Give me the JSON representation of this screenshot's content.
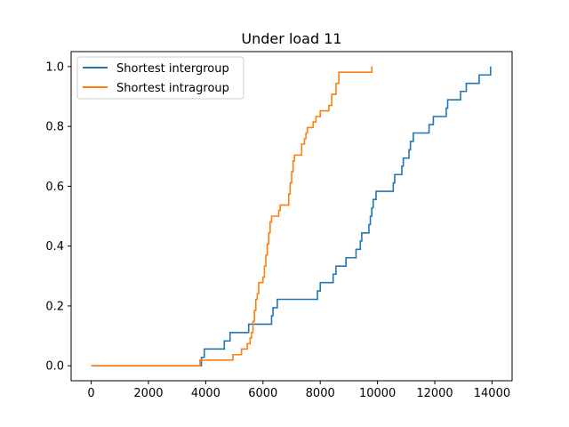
{
  "chart_data": {
    "type": "line",
    "step": true,
    "title": "Under load 11",
    "xlabel": "",
    "ylabel": "",
    "xlim": [
      -700,
      14700
    ],
    "ylim": [
      -0.05,
      1.05
    ],
    "xticks": [
      0,
      2000,
      4000,
      6000,
      8000,
      10000,
      12000,
      14000
    ],
    "xtick_labels": [
      "0",
      "2000",
      "4000",
      "6000",
      "8000",
      "10000",
      "12000",
      "14000"
    ],
    "yticks": [
      0.0,
      0.2,
      0.4,
      0.6,
      0.8,
      1.0
    ],
    "ytick_labels": [
      "0.0",
      "0.2",
      "0.4",
      "0.6",
      "0.8",
      "1.0"
    ],
    "grid": false,
    "legend_position": "upper-left",
    "series": [
      {
        "name": "Shortest intergroup",
        "color": "#1f77b4",
        "points": [
          [
            0,
            0.0
          ],
          [
            3850,
            0.0
          ],
          [
            3850,
            0.028
          ],
          [
            3950,
            0.028
          ],
          [
            3950,
            0.056
          ],
          [
            4650,
            0.056
          ],
          [
            4650,
            0.083
          ],
          [
            4850,
            0.083
          ],
          [
            4850,
            0.111
          ],
          [
            5500,
            0.111
          ],
          [
            5500,
            0.139
          ],
          [
            6300,
            0.139
          ],
          [
            6300,
            0.167
          ],
          [
            6350,
            0.167
          ],
          [
            6350,
            0.194
          ],
          [
            6500,
            0.194
          ],
          [
            6500,
            0.222
          ],
          [
            7900,
            0.222
          ],
          [
            7900,
            0.25
          ],
          [
            8000,
            0.25
          ],
          [
            8000,
            0.278
          ],
          [
            8450,
            0.278
          ],
          [
            8450,
            0.306
          ],
          [
            8550,
            0.306
          ],
          [
            8550,
            0.333
          ],
          [
            8900,
            0.333
          ],
          [
            8900,
            0.361
          ],
          [
            9250,
            0.361
          ],
          [
            9250,
            0.389
          ],
          [
            9400,
            0.389
          ],
          [
            9400,
            0.417
          ],
          [
            9450,
            0.417
          ],
          [
            9450,
            0.444
          ],
          [
            9700,
            0.444
          ],
          [
            9700,
            0.472
          ],
          [
            9750,
            0.472
          ],
          [
            9750,
            0.5
          ],
          [
            9800,
            0.5
          ],
          [
            9800,
            0.528
          ],
          [
            9850,
            0.528
          ],
          [
            9850,
            0.556
          ],
          [
            9950,
            0.556
          ],
          [
            9950,
            0.583
          ],
          [
            10550,
            0.583
          ],
          [
            10550,
            0.611
          ],
          [
            10600,
            0.611
          ],
          [
            10600,
            0.639
          ],
          [
            10850,
            0.639
          ],
          [
            10850,
            0.667
          ],
          [
            10900,
            0.667
          ],
          [
            10900,
            0.694
          ],
          [
            11100,
            0.694
          ],
          [
            11100,
            0.722
          ],
          [
            11150,
            0.722
          ],
          [
            11150,
            0.75
          ],
          [
            11250,
            0.75
          ],
          [
            11250,
            0.778
          ],
          [
            11800,
            0.778
          ],
          [
            11800,
            0.806
          ],
          [
            11950,
            0.806
          ],
          [
            11950,
            0.833
          ],
          [
            12400,
            0.833
          ],
          [
            12400,
            0.861
          ],
          [
            12450,
            0.861
          ],
          [
            12450,
            0.889
          ],
          [
            12900,
            0.889
          ],
          [
            12900,
            0.917
          ],
          [
            13100,
            0.917
          ],
          [
            13100,
            0.944
          ],
          [
            13550,
            0.944
          ],
          [
            13550,
            0.972
          ],
          [
            13950,
            0.972
          ],
          [
            13950,
            1.0
          ]
        ]
      },
      {
        "name": "Shortest intragroup",
        "color": "#ff7f0e",
        "points": [
          [
            0,
            0.0
          ],
          [
            3800,
            0.0
          ],
          [
            3800,
            0.019
          ],
          [
            4950,
            0.019
          ],
          [
            4950,
            0.037
          ],
          [
            5250,
            0.037
          ],
          [
            5250,
            0.056
          ],
          [
            5450,
            0.056
          ],
          [
            5450,
            0.074
          ],
          [
            5550,
            0.074
          ],
          [
            5550,
            0.093
          ],
          [
            5600,
            0.093
          ],
          [
            5600,
            0.111
          ],
          [
            5650,
            0.111
          ],
          [
            5650,
            0.148
          ],
          [
            5700,
            0.148
          ],
          [
            5700,
            0.185
          ],
          [
            5750,
            0.185
          ],
          [
            5750,
            0.222
          ],
          [
            5800,
            0.222
          ],
          [
            5800,
            0.241
          ],
          [
            5850,
            0.241
          ],
          [
            5850,
            0.278
          ],
          [
            6000,
            0.278
          ],
          [
            6000,
            0.296
          ],
          [
            6050,
            0.296
          ],
          [
            6050,
            0.333
          ],
          [
            6100,
            0.333
          ],
          [
            6100,
            0.37
          ],
          [
            6150,
            0.37
          ],
          [
            6150,
            0.407
          ],
          [
            6200,
            0.407
          ],
          [
            6200,
            0.444
          ],
          [
            6250,
            0.444
          ],
          [
            6250,
            0.481
          ],
          [
            6300,
            0.481
          ],
          [
            6300,
            0.5
          ],
          [
            6550,
            0.5
          ],
          [
            6550,
            0.519
          ],
          [
            6600,
            0.519
          ],
          [
            6600,
            0.537
          ],
          [
            6900,
            0.537
          ],
          [
            6900,
            0.574
          ],
          [
            6950,
            0.574
          ],
          [
            6950,
            0.611
          ],
          [
            7000,
            0.611
          ],
          [
            7000,
            0.648
          ],
          [
            7050,
            0.648
          ],
          [
            7050,
            0.685
          ],
          [
            7100,
            0.685
          ],
          [
            7100,
            0.704
          ],
          [
            7350,
            0.704
          ],
          [
            7350,
            0.741
          ],
          [
            7450,
            0.741
          ],
          [
            7450,
            0.759
          ],
          [
            7500,
            0.759
          ],
          [
            7500,
            0.778
          ],
          [
            7550,
            0.778
          ],
          [
            7550,
            0.796
          ],
          [
            7750,
            0.796
          ],
          [
            7750,
            0.815
          ],
          [
            7850,
            0.815
          ],
          [
            7850,
            0.833
          ],
          [
            8000,
            0.833
          ],
          [
            8000,
            0.852
          ],
          [
            8300,
            0.852
          ],
          [
            8300,
            0.87
          ],
          [
            8400,
            0.87
          ],
          [
            8400,
            0.907
          ],
          [
            8550,
            0.907
          ],
          [
            8550,
            0.944
          ],
          [
            8650,
            0.944
          ],
          [
            8650,
            0.981
          ],
          [
            9800,
            0.981
          ],
          [
            9800,
            1.0
          ]
        ]
      }
    ]
  }
}
